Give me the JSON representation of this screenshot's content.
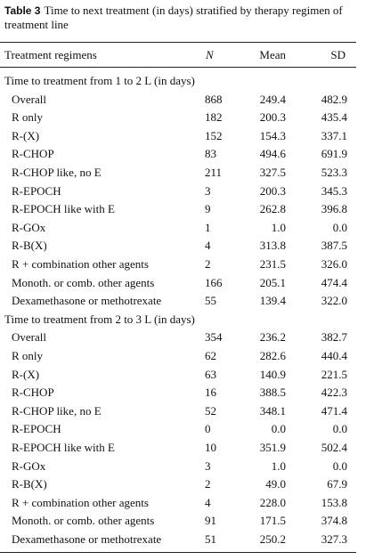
{
  "caption": {
    "label": "Table 3",
    "text": "Time to next treatment (in days) stratified by therapy regimen of treatment line"
  },
  "table": {
    "header": [
      "Treatment regimens",
      "N",
      "Mean",
      "SD"
    ],
    "sections": [
      {
        "title": "Time to treatment from 1 to 2 L (in days)",
        "rows": [
          [
            "Overall",
            "868",
            "249.4",
            "482.9"
          ],
          [
            "R only",
            "182",
            "200.3",
            "435.4"
          ],
          [
            "R-(X)",
            "152",
            "154.3",
            "337.1"
          ],
          [
            "R-CHOP",
            "83",
            "494.6",
            "691.9"
          ],
          [
            "R-CHOP like, no E",
            "211",
            "327.5",
            "523.3"
          ],
          [
            "R-EPOCH",
            "3",
            "200.3",
            "345.3"
          ],
          [
            "R-EPOCH like with E",
            "9",
            "262.8",
            "396.8"
          ],
          [
            "R-GOx",
            "1",
            "1.0",
            "0.0"
          ],
          [
            "R-B(X)",
            "4",
            "313.8",
            "387.5"
          ],
          [
            "R + combination other agents",
            "2",
            "231.5",
            "326.0"
          ],
          [
            "Monoth. or comb. other agents",
            "166",
            "205.1",
            "474.4"
          ],
          [
            "Dexamethasone or methotrexate",
            "55",
            "139.4",
            "322.0"
          ]
        ]
      },
      {
        "title": "Time to treatment from 2 to 3 L (in days)",
        "rows": [
          [
            "Overall",
            "354",
            "236.2",
            "382.7"
          ],
          [
            "R only",
            "62",
            "282.6",
            "440.4"
          ],
          [
            "R-(X)",
            "63",
            "140.9",
            "221.5"
          ],
          [
            "R-CHOP",
            "16",
            "388.5",
            "422.3"
          ],
          [
            "R-CHOP like, no E",
            "52",
            "348.1",
            "471.4"
          ],
          [
            "R-EPOCH",
            "0",
            "0.0",
            "0.0"
          ],
          [
            "R-EPOCH like with E",
            "10",
            "351.9",
            "502.4"
          ],
          [
            "R-GOx",
            "3",
            "1.0",
            "0.0"
          ],
          [
            "R-B(X)",
            "2",
            "49.0",
            "67.9"
          ],
          [
            "R + combination other agents",
            "4",
            "228.0",
            "153.8"
          ],
          [
            "Monoth. or comb. other agents",
            "91",
            "171.5",
            "374.8"
          ],
          [
            "Dexamethasone or methotrexate",
            "51",
            "250.2",
            "327.3"
          ]
        ]
      }
    ]
  }
}
